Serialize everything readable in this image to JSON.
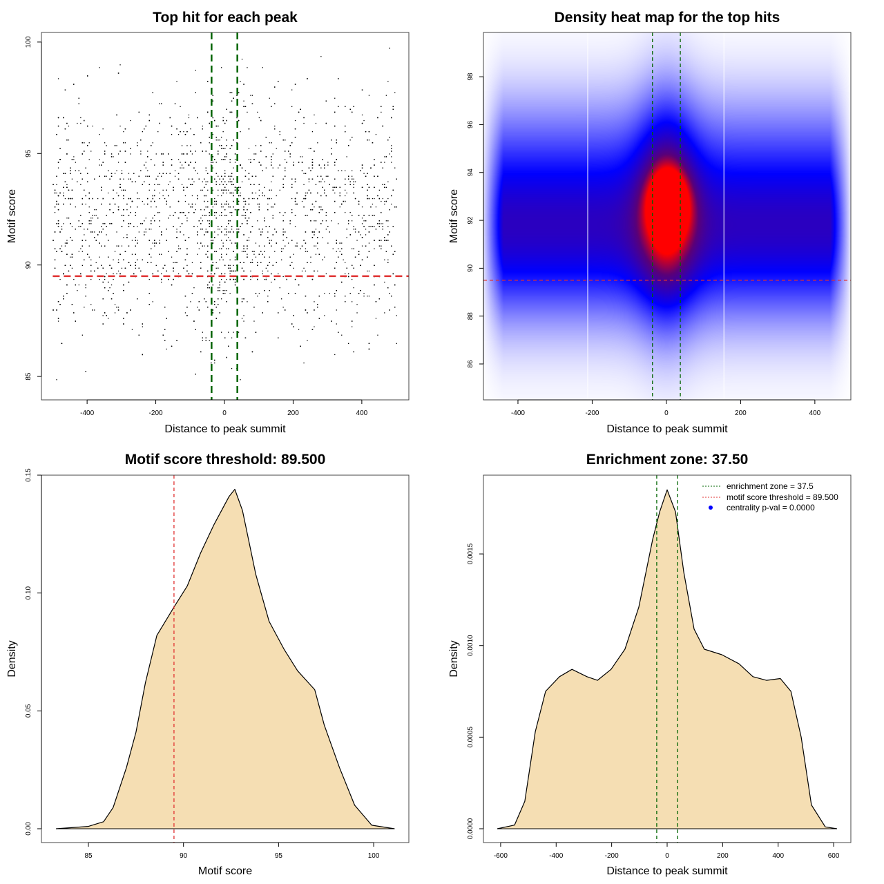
{
  "chart_data": [
    {
      "type": "scatter",
      "title": "Top hit for each peak",
      "xlabel": "Distance to peak summit",
      "ylabel": "Motif score",
      "xlim": [
        -533,
        537
      ],
      "ylim": [
        83.95,
        100.43
      ],
      "xticks": [
        -400,
        -200,
        0,
        200,
        400
      ],
      "yticks": [
        85,
        90,
        95,
        100
      ],
      "points": {
        "n": 5200,
        "x_range": [
          -500,
          500
        ],
        "y_mean": 92.3,
        "y_sd": 2.7,
        "central_enrichment": true
      },
      "vlines": [
        -37.5,
        37.5
      ],
      "hline": 89.5,
      "colors": {
        "points": "#000000",
        "vlines": "#006400",
        "hline": "#e03030"
      }
    },
    {
      "type": "heatmap",
      "title": "Density heat map for the top hits",
      "xlabel": "Distance to peak summit",
      "ylabel": "Motif score",
      "xlim": [
        -493,
        497
      ],
      "ylim": [
        84.5,
        99.85
      ],
      "xticks": [
        -400,
        -200,
        0,
        200,
        400
      ],
      "yticks": [
        86,
        88,
        90,
        92,
        94,
        96,
        98
      ],
      "peak": [
        5,
        92.7
      ],
      "vlines": [
        -37.5,
        37.5
      ],
      "hline": 89.5,
      "colors": {
        "low": "#ffffff",
        "mid": "#0000ff",
        "high": "#ff0000",
        "vlines": "#006400",
        "hline": "#e03030"
      }
    },
    {
      "type": "area",
      "title": "Motif score threshold: 89.500",
      "xlabel": "Motif score",
      "ylabel": "Density",
      "xlim": [
        82.53,
        101.85
      ],
      "ylim": [
        -0.00586,
        0.15
      ],
      "xticks": [
        85,
        90,
        95,
        100
      ],
      "yticks": [
        0.0,
        0.05,
        0.1,
        0.15
      ],
      "ytick_labels": [
        "0.00",
        "0.05",
        "0.10",
        "0.15"
      ],
      "x": [
        83.3,
        85,
        85.8,
        86.3,
        87,
        87.5,
        88,
        88.6,
        89.5,
        90.2,
        90.9,
        91.6,
        92.4,
        92.7,
        93.1,
        93.8,
        94.5,
        95.3,
        96,
        96.9,
        97.4,
        98.2,
        99,
        99.9,
        101.1
      ],
      "y": [
        0,
        0.001,
        0.003,
        0.009,
        0.026,
        0.041,
        0.062,
        0.082,
        0.094,
        0.103,
        0.117,
        0.129,
        0.141,
        0.144,
        0.135,
        0.108,
        0.088,
        0.076,
        0.067,
        0.059,
        0.044,
        0.026,
        0.01,
        0.0015,
        0
      ],
      "vline": 89.5,
      "colors": {
        "fill": "#f5deb3",
        "line": "#000000",
        "vline": "#e03030"
      }
    },
    {
      "type": "area",
      "title": "Enrichment zone: 37.50",
      "xlabel": "Distance to peak summit",
      "ylabel": "Density",
      "xlim": [
        -662,
        662
      ],
      "ylim": [
        -7.54e-05,
        0.00193
      ],
      "xticks": [
        -600,
        -400,
        -200,
        0,
        200,
        400,
        600
      ],
      "yticks": [
        0,
        0.0005,
        0.001,
        0.0015
      ],
      "ytick_labels": [
        "0.0000",
        "0.0005",
        "0.0010",
        "0.0015"
      ],
      "x": [
        -612,
        -550,
        -513,
        -475,
        -438,
        -388,
        -343,
        -289,
        -251,
        -202,
        -152,
        -102,
        -52,
        -27,
        0,
        30,
        60,
        97,
        134,
        197,
        259,
        309,
        358,
        408,
        446,
        483,
        520,
        570,
        612
      ],
      "y": [
        0,
        2e-05,
        0.00015,
        0.00053,
        0.00075,
        0.00083,
        0.00087,
        0.00083,
        0.00081,
        0.00087,
        0.00098,
        0.00121,
        0.00158,
        0.00173,
        0.00185,
        0.00173,
        0.0014,
        0.00109,
        0.00098,
        0.00095,
        0.0009,
        0.00083,
        0.00081,
        0.00082,
        0.00075,
        0.0005,
        0.00013,
        1e-05,
        0
      ],
      "vlines": [
        -37.5,
        37.5
      ],
      "legend": {
        "position": "top-right",
        "entries": [
          "enrichment zone = 37.5",
          "motif score threshold = 89.500",
          "centrality p-val = 0.0000"
        ],
        "colors": [
          "#006400",
          "#e03030",
          "#0000ff"
        ]
      },
      "colors": {
        "fill": "#f5deb3",
        "line": "#000000",
        "vlines": "#006400"
      }
    }
  ]
}
